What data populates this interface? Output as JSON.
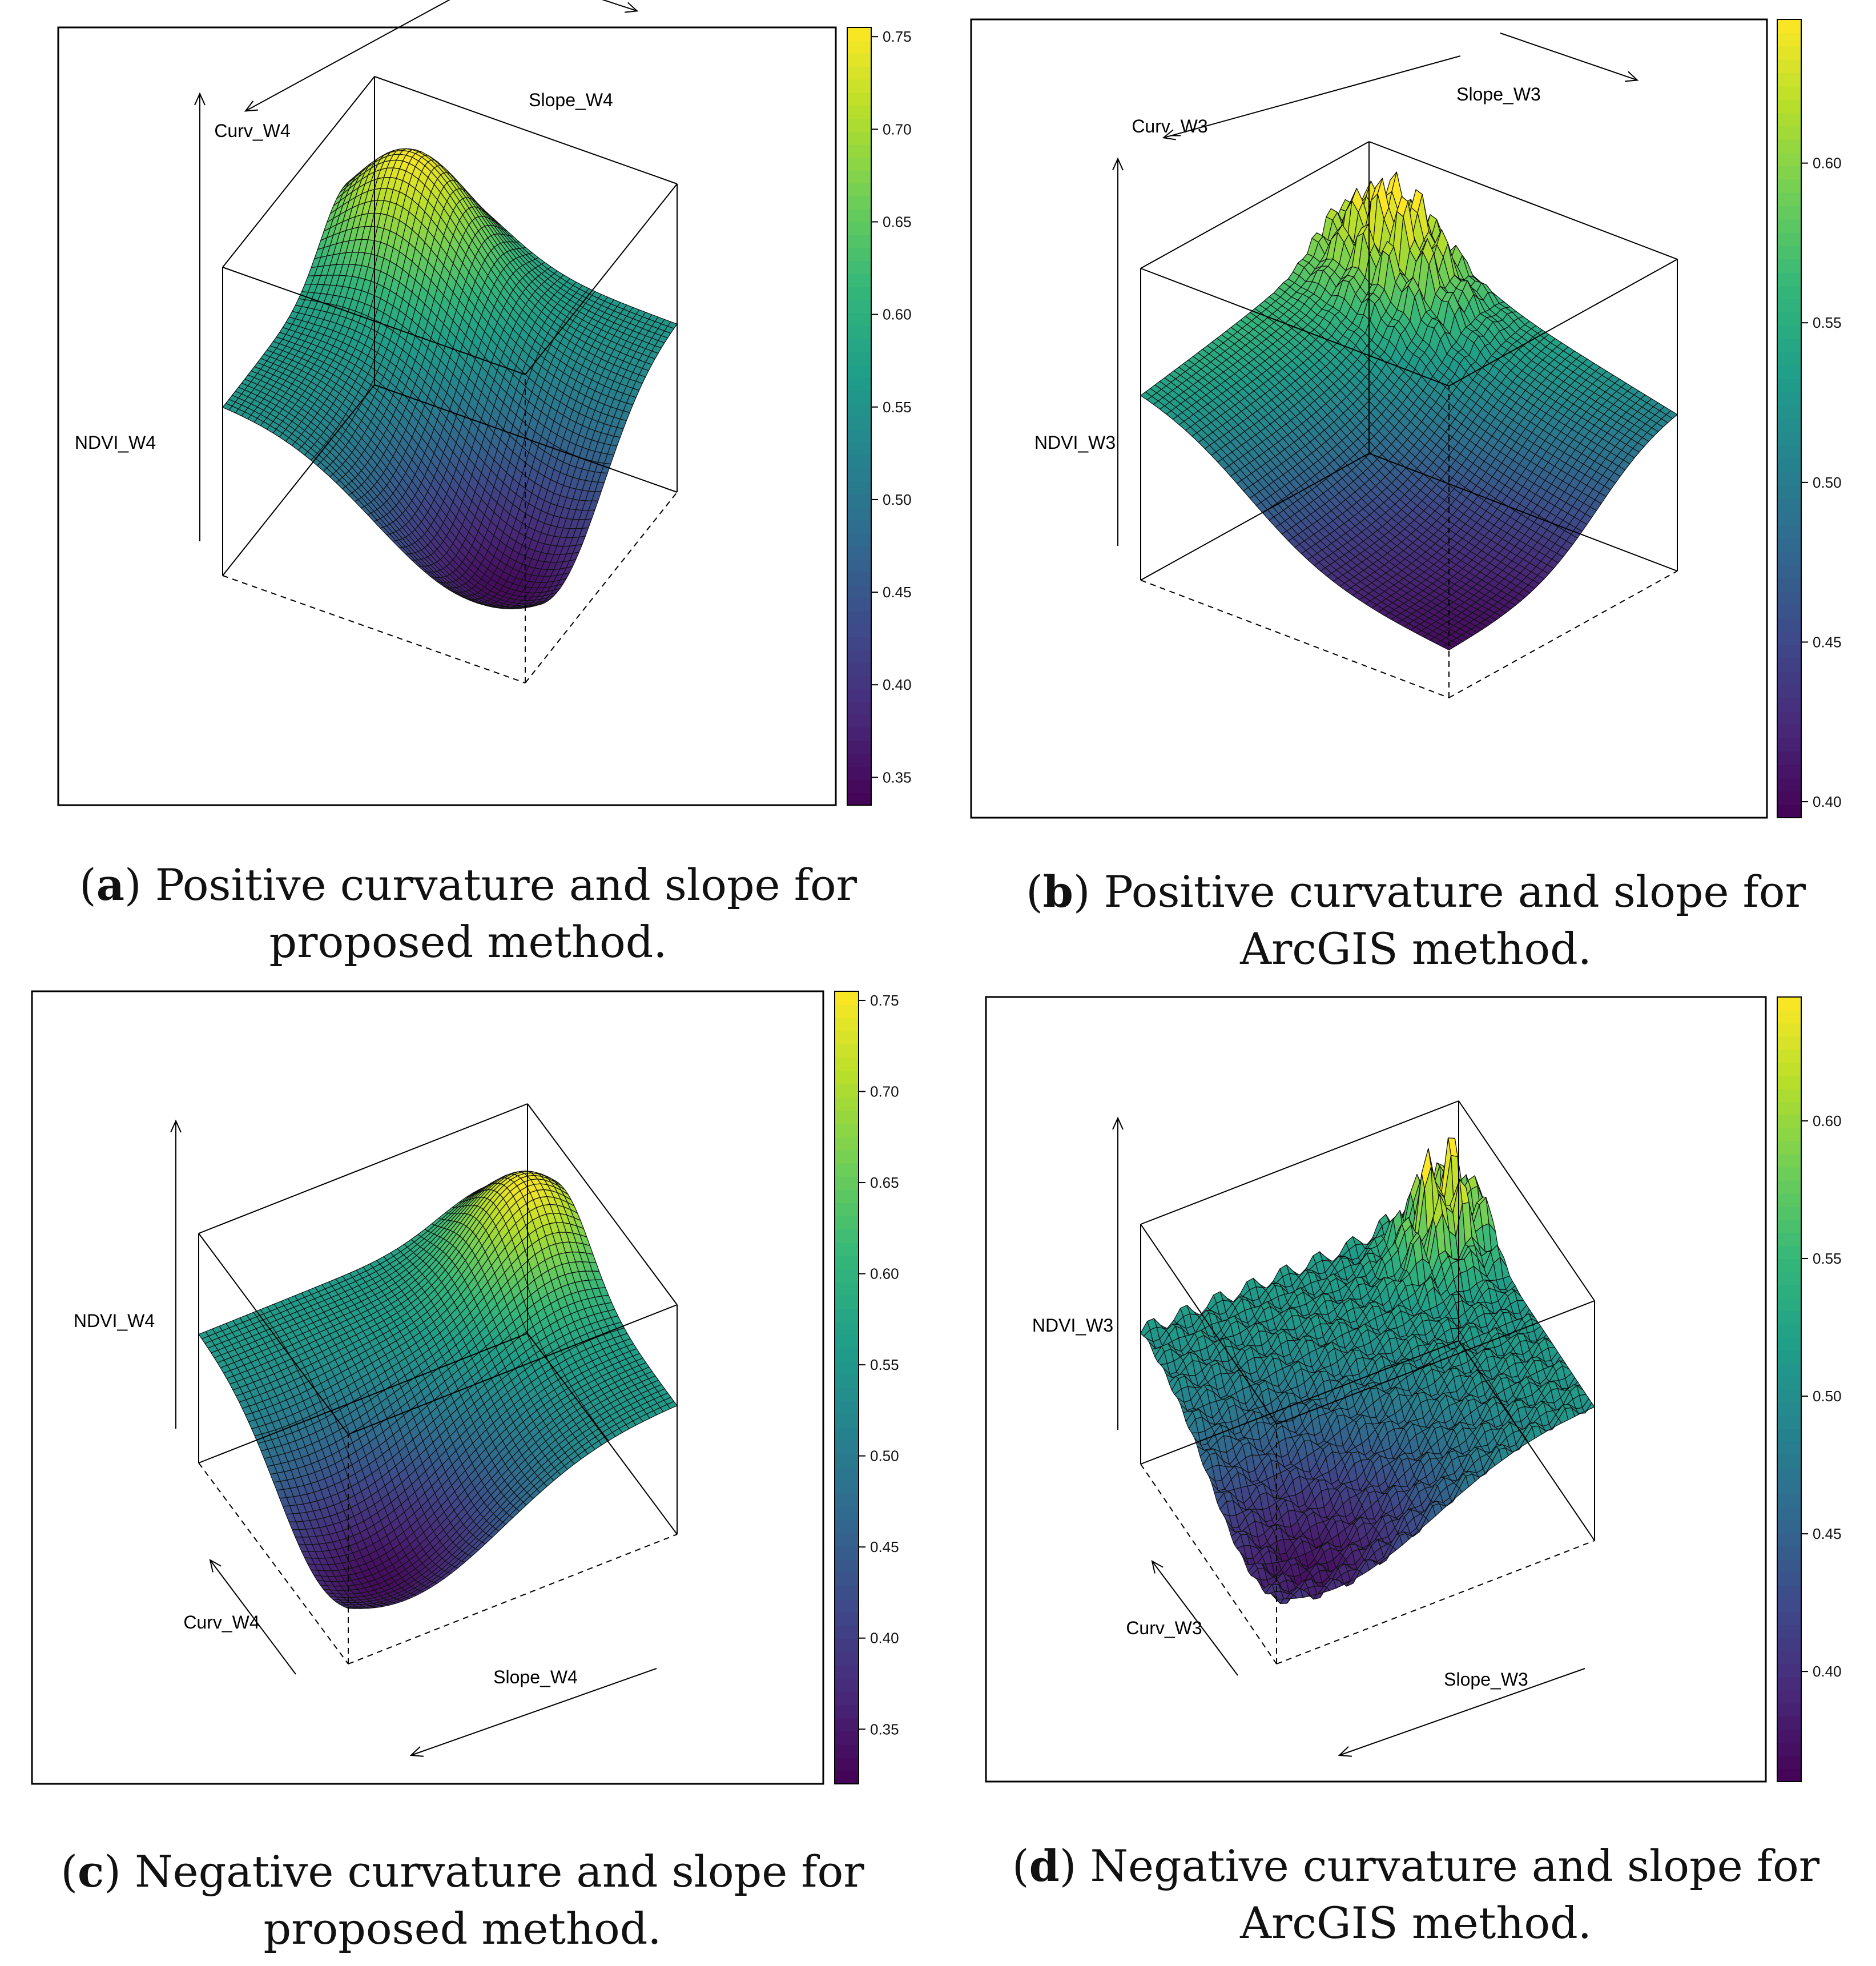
{
  "colors": {
    "viridis": [
      "#440154",
      "#482878",
      "#3e4989",
      "#31688e",
      "#26828e",
      "#1f9e89",
      "#35b779",
      "#6ece58",
      "#b5de2b",
      "#fde725"
    ],
    "frame": "#000000"
  },
  "chart_data": [
    {
      "type": "surface3d",
      "panel": "a",
      "caption_letter": "a",
      "caption_text": ") Positive curvature and slope for proposed method.",
      "xlabel": "Curv_W4",
      "ylabel": "Slope_W4",
      "zlabel": "NDVI_W4",
      "colorbar": {
        "range": [
          0.335,
          0.755
        ],
        "ticks": [
          "0.35",
          "0.40",
          "0.45",
          "0.50",
          "0.55",
          "0.60",
          "0.65",
          "0.70",
          "0.75"
        ],
        "tick_values": [
          0.35,
          0.4,
          0.45,
          0.5,
          0.55,
          0.6,
          0.65,
          0.7,
          0.75
        ]
      },
      "surface_summary": {
        "min_ndvi": 0.34,
        "max_ndvi": 0.75,
        "plateau_ndvi": 0.56,
        "peak_location": "high curvature, low slope",
        "trough_location": "low curvature, high slope"
      }
    },
    {
      "type": "surface3d",
      "panel": "b",
      "caption_letter": "b",
      "caption_text": ") Positive curvature and slope for ArcGIS method.",
      "xlabel": "Curv_W3",
      "ylabel": "Slope_W3",
      "zlabel": "NDVI_W3",
      "colorbar": {
        "range": [
          0.395,
          0.645
        ],
        "ticks": [
          "0.40",
          "0.45",
          "0.50",
          "0.55",
          "0.60"
        ],
        "tick_values": [
          0.4,
          0.45,
          0.5,
          0.55,
          0.6
        ]
      },
      "surface_summary": {
        "min_ndvi": 0.4,
        "max_ndvi": 0.64,
        "plateau_ndvi": 0.52,
        "peak_location": "spiky ridge at low slope",
        "trough_location": "low curvature, high slope"
      }
    },
    {
      "type": "surface3d",
      "panel": "c",
      "caption_letter": "c",
      "caption_text": ") Negative curvature and slope for proposed method.",
      "xlabel": "Curv_W4",
      "ylabel": "Slope_W4",
      "zlabel": "NDVI_W4",
      "colorbar": {
        "range": [
          0.32,
          0.755
        ],
        "ticks": [
          "0.35",
          "0.40",
          "0.45",
          "0.50",
          "0.55",
          "0.60",
          "0.65",
          "0.70",
          "0.75"
        ],
        "tick_values": [
          0.35,
          0.4,
          0.45,
          0.5,
          0.55,
          0.6,
          0.65,
          0.7,
          0.75
        ]
      },
      "surface_summary": {
        "min_ndvi": 0.33,
        "max_ndvi": 0.75,
        "plateau_ndvi": 0.56,
        "peak_location": "back corner",
        "trough_location": "front corner"
      }
    },
    {
      "type": "surface3d",
      "panel": "d",
      "caption_letter": "d",
      "caption_text": ") Negative curvature and slope for ArcGIS method.",
      "xlabel": "Curv_W3",
      "ylabel": "Slope_W3",
      "zlabel": "NDVI_W3",
      "colorbar": {
        "range": [
          0.36,
          0.645
        ],
        "ticks": [
          "0.40",
          "0.45",
          "0.50",
          "0.55",
          "0.60"
        ],
        "tick_values": [
          0.4,
          0.45,
          0.5,
          0.55,
          0.6
        ]
      },
      "surface_summary": {
        "min_ndvi": 0.37,
        "max_ndvi": 0.64,
        "plateau_ndvi": 0.52,
        "peak_location": "spiky peak at back corner",
        "trough_location": "front corner"
      }
    }
  ]
}
